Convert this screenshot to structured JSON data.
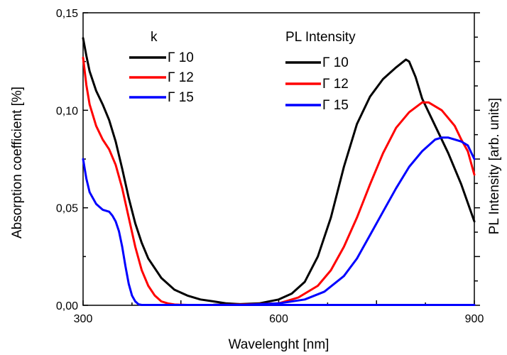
{
  "chart_data": {
    "type": "line",
    "xlabel": "Wavelenght [nm]",
    "ylabel_left": "Absorption coefficient [%]",
    "ylabel_right": "PL Intensity [arb. units]",
    "xlim": [
      300,
      900
    ],
    "ylim_left": [
      0,
      0.15
    ],
    "x_ticks": [
      300,
      600,
      900
    ],
    "x_tick_labels": [
      "300",
      "600",
      "900"
    ],
    "y_ticks": [
      0,
      0.05,
      0.1,
      0.15
    ],
    "y_tick_labels": [
      "0,00",
      "0,05",
      "0,10",
      "0,15"
    ],
    "right_axis_tick_labels": "none",
    "grid": false,
    "legends": [
      {
        "title": "k",
        "placement": "top-left",
        "entries": [
          {
            "label": "Γ 10",
            "color": "#000000"
          },
          {
            "label": "Γ 12",
            "color": "#ff0000"
          },
          {
            "label": "Γ 15",
            "color": "#0000ff"
          }
        ]
      },
      {
        "title": "PL Intensity",
        "placement": "top-center",
        "entries": [
          {
            "label": "Γ 10",
            "color": "#000000"
          },
          {
            "label": "Γ 12",
            "color": "#ff0000"
          },
          {
            "label": "Γ 15",
            "color": "#0000ff"
          }
        ]
      }
    ],
    "series": [
      {
        "group": "absorption",
        "legend_label": "Γ 10",
        "color": "#000000",
        "x": [
          300,
          305,
          310,
          320,
          330,
          340,
          350,
          360,
          370,
          380,
          390,
          400,
          420,
          440,
          460,
          480,
          500,
          520,
          540,
          560,
          580,
          600,
          620,
          640,
          660,
          680,
          700,
          750,
          800,
          850,
          900
        ],
        "y": [
          0.137,
          0.128,
          0.12,
          0.11,
          0.103,
          0.095,
          0.084,
          0.07,
          0.055,
          0.042,
          0.032,
          0.024,
          0.014,
          0.008,
          0.005,
          0.003,
          0.002,
          0.001,
          0.0006,
          0.0004,
          0.0003,
          0.0002,
          0.0002,
          0.0002,
          0.0002,
          0.0002,
          0.0002,
          0.0002,
          0.0002,
          0.0002,
          0.0002
        ]
      },
      {
        "group": "absorption",
        "legend_label": "Γ 12",
        "color": "#ff0000",
        "x": [
          300,
          305,
          310,
          320,
          330,
          340,
          350,
          360,
          370,
          380,
          390,
          400,
          410,
          420,
          430,
          440,
          460,
          480,
          500,
          550,
          600,
          700,
          800,
          900
        ],
        "y": [
          0.127,
          0.113,
          0.103,
          0.092,
          0.085,
          0.08,
          0.072,
          0.06,
          0.045,
          0.03,
          0.018,
          0.01,
          0.005,
          0.002,
          0.001,
          0.0004,
          0.0002,
          0.0002,
          0.0002,
          0.0002,
          0.0002,
          0.0002,
          0.0002,
          0.0002
        ]
      },
      {
        "group": "absorption",
        "legend_label": "Γ 15",
        "color": "#0000ff",
        "x": [
          300,
          305,
          310,
          320,
          330,
          340,
          345,
          350,
          355,
          360,
          365,
          370,
          375,
          380,
          385,
          390,
          400,
          450,
          500,
          600,
          700,
          800,
          900
        ],
        "y": [
          0.075,
          0.065,
          0.058,
          0.052,
          0.049,
          0.048,
          0.046,
          0.043,
          0.038,
          0.03,
          0.02,
          0.011,
          0.005,
          0.002,
          0.0005,
          0.0002,
          0.0002,
          0.0002,
          0.0002,
          0.0002,
          0.0002,
          0.0002,
          0.0002
        ]
      },
      {
        "group": "pl",
        "legend_label": "Γ 10",
        "color": "#000000",
        "x": [
          500,
          540,
          570,
          600,
          620,
          640,
          660,
          680,
          700,
          720,
          740,
          760,
          780,
          795,
          800,
          810,
          820,
          840,
          860,
          880,
          900
        ],
        "y": [
          0.0003,
          0.0006,
          0.001,
          0.003,
          0.006,
          0.012,
          0.025,
          0.045,
          0.071,
          0.093,
          0.107,
          0.116,
          0.122,
          0.126,
          0.125,
          0.117,
          0.106,
          0.092,
          0.078,
          0.062,
          0.043
        ]
      },
      {
        "group": "pl",
        "legend_label": "Γ 12",
        "color": "#ff0000",
        "x": [
          500,
          550,
          600,
          630,
          660,
          680,
          700,
          720,
          740,
          760,
          780,
          800,
          820,
          830,
          840,
          850,
          860,
          870,
          880,
          890,
          900
        ],
        "y": [
          0.0002,
          0.0004,
          0.001,
          0.004,
          0.01,
          0.018,
          0.03,
          0.045,
          0.062,
          0.078,
          0.091,
          0.099,
          0.104,
          0.104,
          0.102,
          0.1,
          0.096,
          0.092,
          0.085,
          0.079,
          0.067
        ]
      },
      {
        "group": "pl",
        "legend_label": "Γ 15",
        "color": "#0000ff",
        "x": [
          500,
          550,
          600,
          640,
          670,
          700,
          720,
          740,
          760,
          780,
          800,
          820,
          840,
          850,
          860,
          870,
          880,
          890,
          900
        ],
        "y": [
          0.0002,
          0.0003,
          0.001,
          0.003,
          0.007,
          0.015,
          0.024,
          0.036,
          0.048,
          0.06,
          0.071,
          0.079,
          0.085,
          0.086,
          0.086,
          0.085,
          0.084,
          0.082,
          0.075
        ]
      }
    ]
  }
}
